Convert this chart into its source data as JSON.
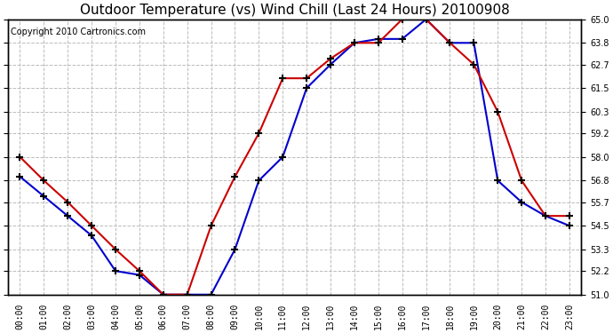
{
  "title": "Outdoor Temperature (vs) Wind Chill (Last 24 Hours) 20100908",
  "copyright": "Copyright 2010 Cartronics.com",
  "hours": [
    "00:00",
    "01:00",
    "02:00",
    "03:00",
    "04:00",
    "05:00",
    "06:00",
    "07:00",
    "08:00",
    "09:00",
    "10:00",
    "11:00",
    "12:00",
    "13:00",
    "14:00",
    "15:00",
    "16:00",
    "17:00",
    "18:00",
    "19:00",
    "20:00",
    "21:00",
    "22:00",
    "23:00"
  ],
  "temp": [
    58.0,
    56.8,
    55.7,
    54.5,
    53.3,
    52.2,
    51.0,
    51.0,
    54.5,
    57.0,
    59.2,
    62.0,
    62.0,
    63.0,
    63.8,
    63.8,
    65.0,
    65.0,
    63.8,
    62.7,
    60.3,
    56.8,
    55.0,
    55.0
  ],
  "windchill": [
    57.0,
    56.0,
    55.0,
    54.0,
    52.2,
    52.0,
    51.0,
    51.0,
    51.0,
    53.3,
    56.8,
    58.0,
    61.5,
    62.7,
    63.8,
    64.0,
    64.0,
    65.0,
    63.8,
    63.8,
    56.8,
    55.7,
    55.0,
    54.5
  ],
  "temp_color": "#cc0000",
  "windchill_color": "#0000cc",
  "ylim_min": 51.0,
  "ylim_max": 65.0,
  "yticks": [
    51.0,
    52.2,
    53.3,
    54.5,
    55.7,
    56.8,
    58.0,
    59.2,
    60.3,
    61.5,
    62.7,
    63.8,
    65.0
  ],
  "bg_color": "#ffffff",
  "plot_bg_color": "#f0f0f0",
  "grid_color": "#bbbbbb",
  "title_fontsize": 11,
  "copyright_fontsize": 7,
  "tick_fontsize": 7
}
